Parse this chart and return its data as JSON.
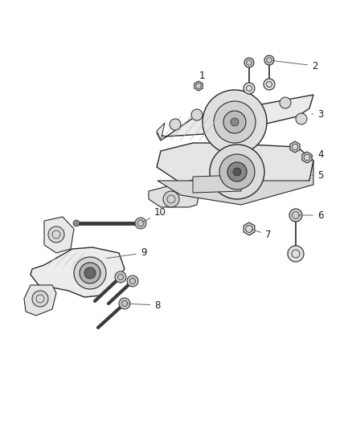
{
  "background_color": "#ffffff",
  "fig_width": 4.38,
  "fig_height": 5.33,
  "dpi": 100,
  "line_color": "#2a2a2a",
  "label_color": "#1a1a1a",
  "label_fontsize": 8.5,
  "fill_light": "#f0f0f0",
  "fill_mid": "#d8d8d8",
  "fill_dark": "#b0b0b0",
  "fill_rubber": "#555555",
  "fill_plate": "#e8e8e8"
}
